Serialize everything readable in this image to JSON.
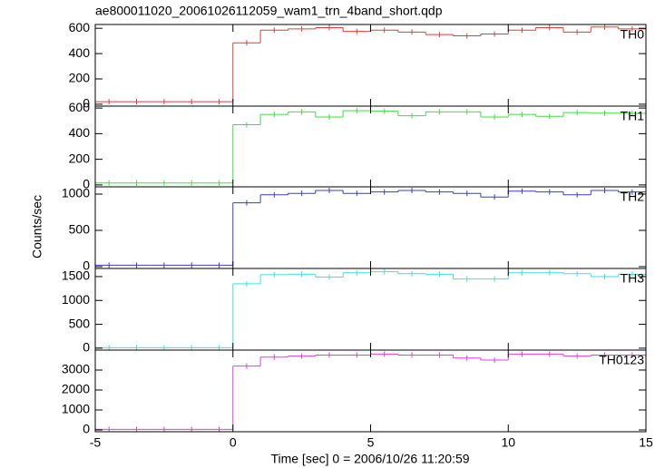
{
  "chart_data": {
    "type": "histogram",
    "title": "ae800011020_20061026112059_wam1_trn_4band_short.qdp",
    "xlabel": "Time [sec] 0 = 2006/10/26 11:20:59",
    "ylabel": "Counts/sec",
    "bins": [
      -5,
      -4,
      -3,
      -2,
      -1,
      0,
      1,
      2,
      3,
      4,
      5,
      6,
      7,
      8,
      9,
      10,
      11,
      12,
      13,
      14,
      15
    ],
    "xlim": [
      -5,
      15
    ],
    "xticks": [
      -5,
      0,
      5,
      10,
      15
    ],
    "series": [
      {
        "name": "TH0",
        "color": "#e03c3c",
        "ylim": [
          -15,
          630
        ],
        "yticks": [
          0,
          200,
          400,
          600
        ],
        "values": [
          20,
          20,
          20,
          20,
          20,
          485,
          585,
          595,
          605,
          575,
          585,
          570,
          550,
          540,
          555,
          585,
          605,
          570,
          610,
          595
        ]
      },
      {
        "name": "TH1",
        "color": "#3ce03c",
        "ylim": [
          -15,
          615
        ],
        "yticks": [
          0,
          200,
          400,
          600
        ],
        "values": [
          15,
          15,
          15,
          15,
          15,
          470,
          550,
          570,
          530,
          580,
          575,
          540,
          570,
          570,
          530,
          550,
          535,
          565,
          560,
          558
        ]
      },
      {
        "name": "TH2",
        "color": "#3c3cc0",
        "ylim": [
          -25,
          1100
        ],
        "yticks": [
          0,
          500,
          1000
        ],
        "values": [
          20,
          20,
          20,
          20,
          20,
          880,
          990,
          1010,
          1050,
          1010,
          1030,
          1050,
          1030,
          1010,
          960,
          1040,
          1030,
          990,
          1050,
          1030
        ]
      },
      {
        "name": "TH3",
        "color": "#3ce0e0",
        "ylim": [
          -40,
          1670
        ],
        "yticks": [
          0,
          500,
          1000,
          1500
        ],
        "values": [
          10,
          10,
          10,
          10,
          10,
          1350,
          1540,
          1550,
          1490,
          1580,
          1600,
          1560,
          1550,
          1450,
          1450,
          1580,
          1580,
          1560,
          1500,
          1550
        ]
      },
      {
        "name": "TH0123",
        "color": "#e03ce0",
        "ylim": [
          -90,
          4000
        ],
        "yticks": [
          0,
          1000,
          2000,
          3000
        ],
        "values": [
          30,
          30,
          30,
          30,
          30,
          3200,
          3650,
          3700,
          3750,
          3750,
          3800,
          3750,
          3750,
          3600,
          3500,
          3800,
          3800,
          3700,
          3750,
          3750
        ]
      }
    ]
  }
}
